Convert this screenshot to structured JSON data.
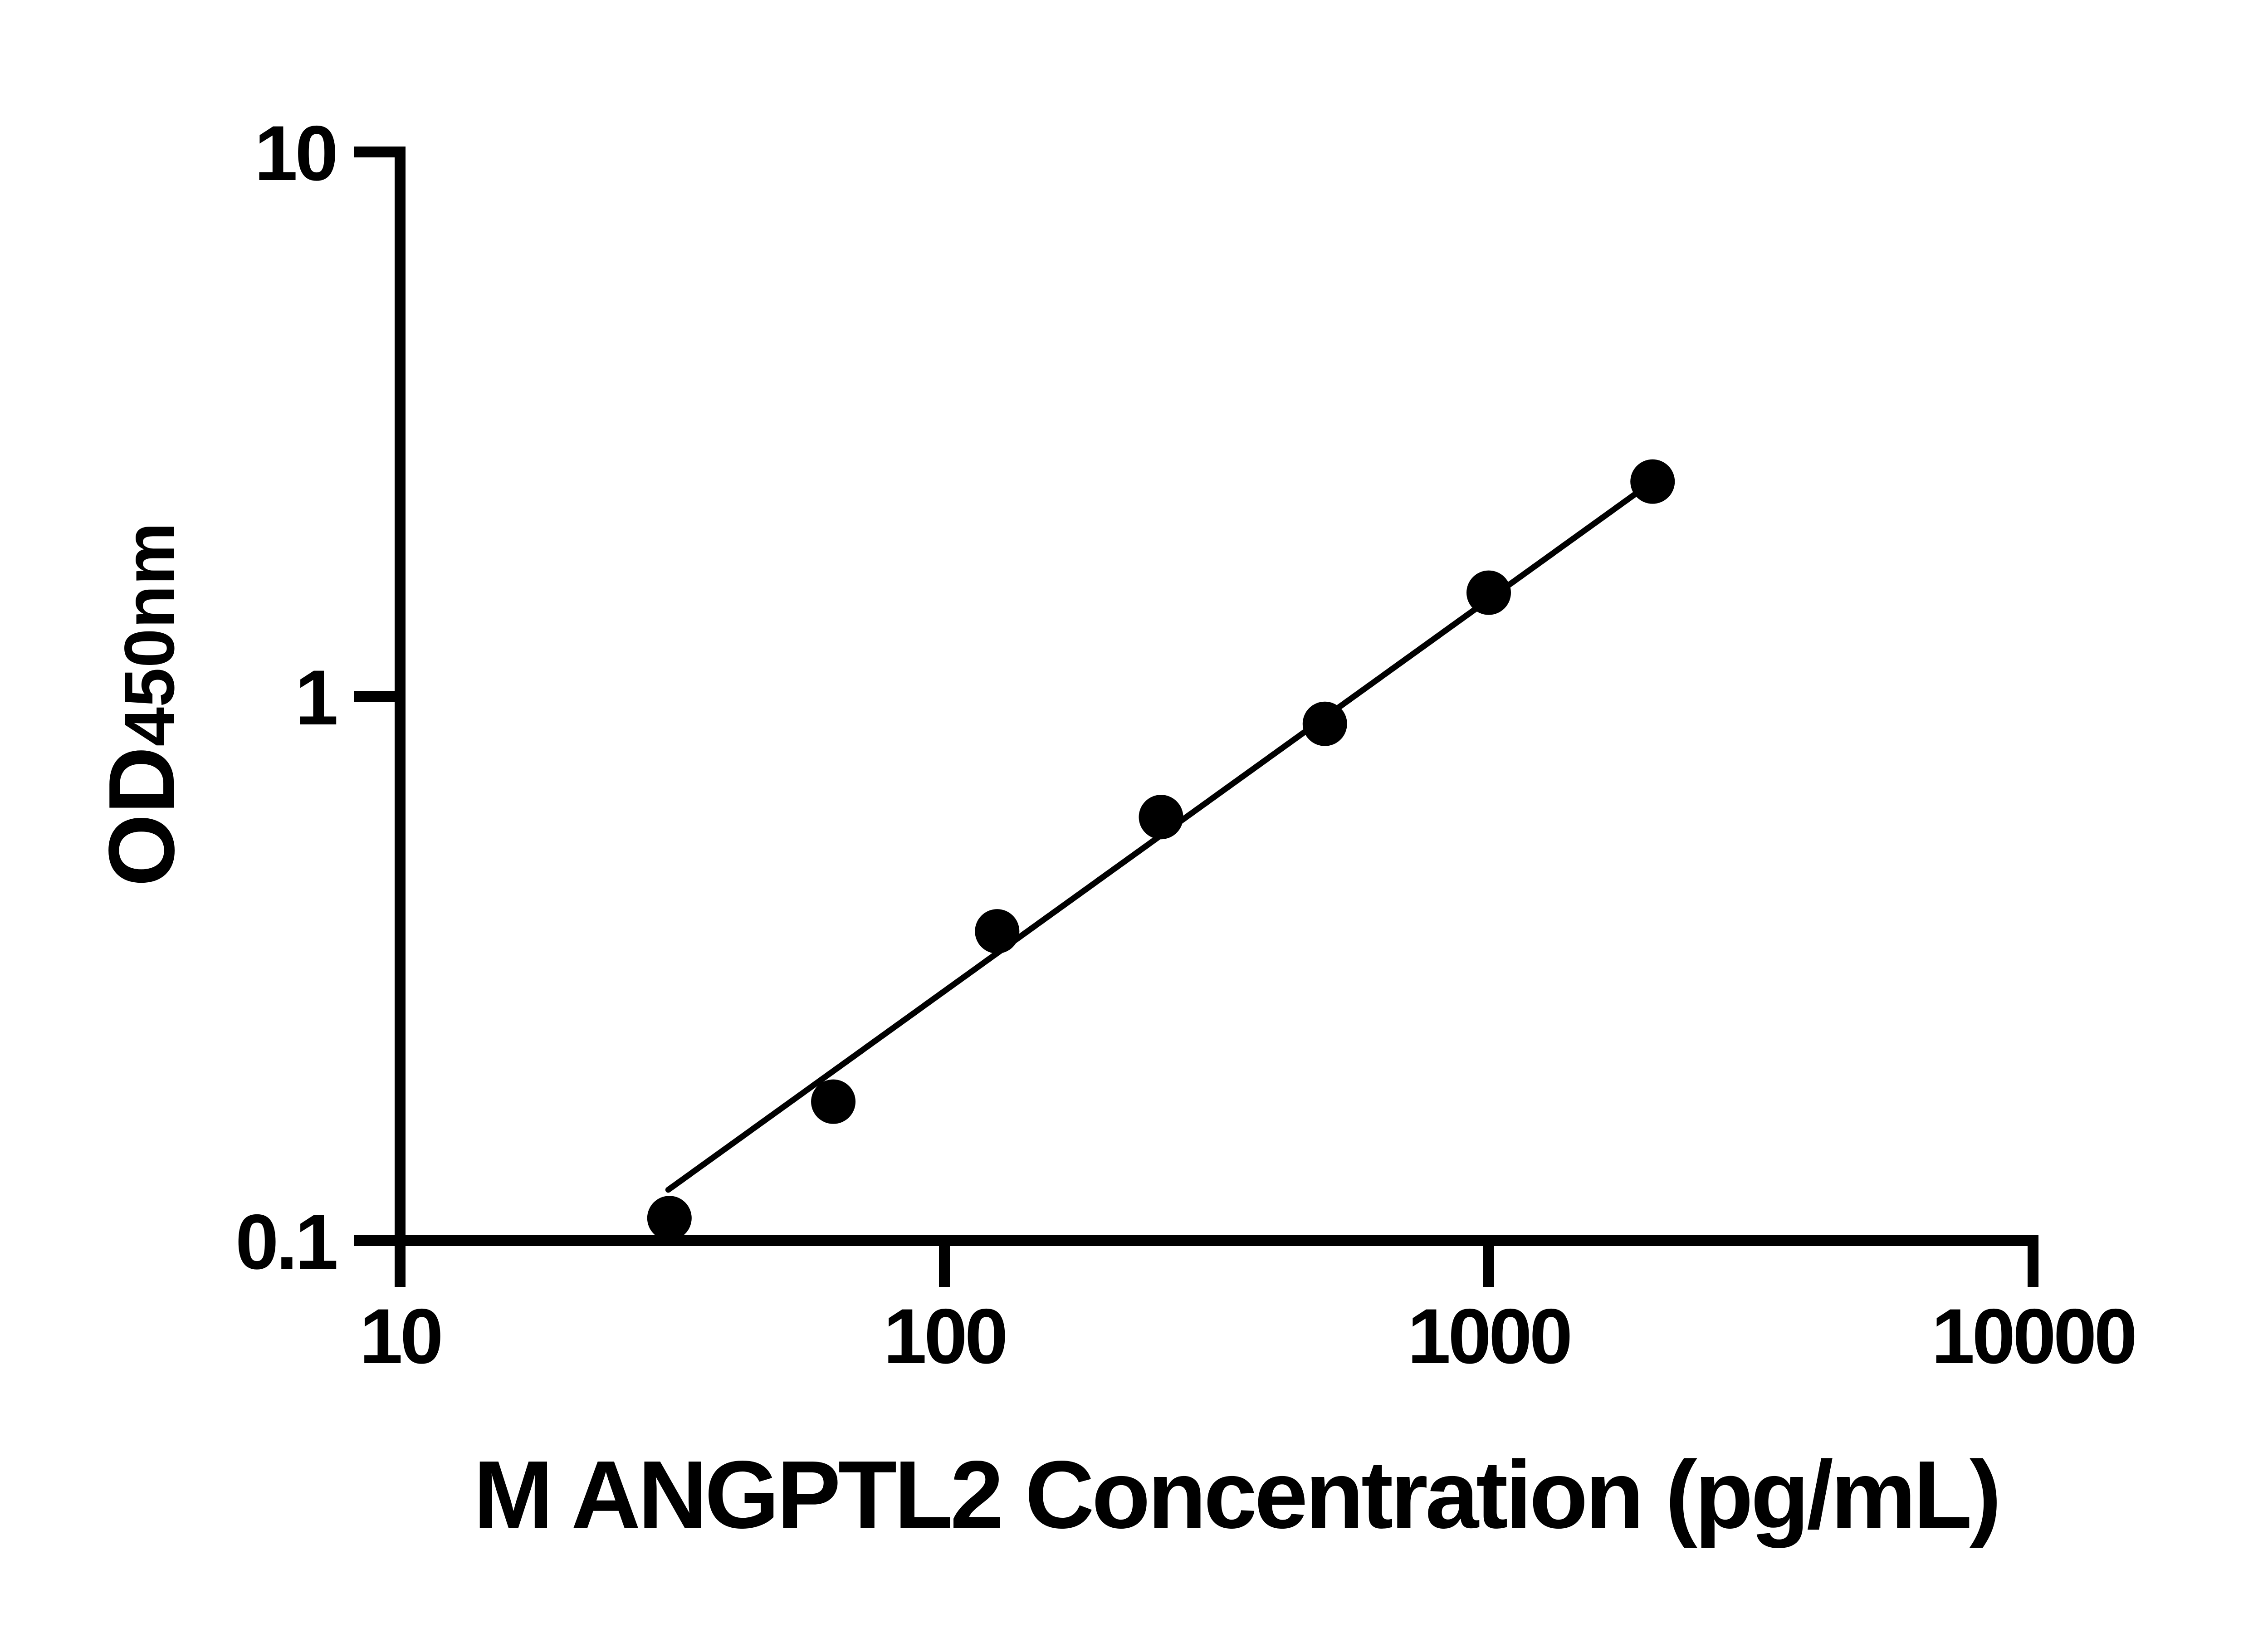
{
  "figure": {
    "background_color": "#ffffff",
    "ink_color": "#000000"
  },
  "chart_data": {
    "type": "scatter",
    "title": "",
    "xlabel": "M ANGPTL2 Concentration (pg/mL)",
    "ylabel_main": "OD",
    "ylabel_sub": "450nm",
    "x_scale": "log",
    "y_scale": "log",
    "xlim": [
      10,
      10000
    ],
    "ylim": [
      0.1,
      10
    ],
    "x_ticks": [
      10,
      100,
      1000,
      10000
    ],
    "y_ticks": [
      0.1,
      1,
      10
    ],
    "grid": false,
    "legend": null,
    "series": [
      {
        "name": "standard-curve-points",
        "marker": "circle",
        "color": "#000000",
        "points": [
          {
            "x": 31.25,
            "y": 0.11
          },
          {
            "x": 62.5,
            "y": 0.18
          },
          {
            "x": 125,
            "y": 0.37
          },
          {
            "x": 250,
            "y": 0.6
          },
          {
            "x": 500,
            "y": 0.89
          },
          {
            "x": 1000,
            "y": 1.55
          },
          {
            "x": 2000,
            "y": 2.48
          }
        ]
      }
    ],
    "trend_line": {
      "x": [
        31.1,
        2000
      ],
      "y": [
        0.124,
        2.48
      ]
    }
  }
}
